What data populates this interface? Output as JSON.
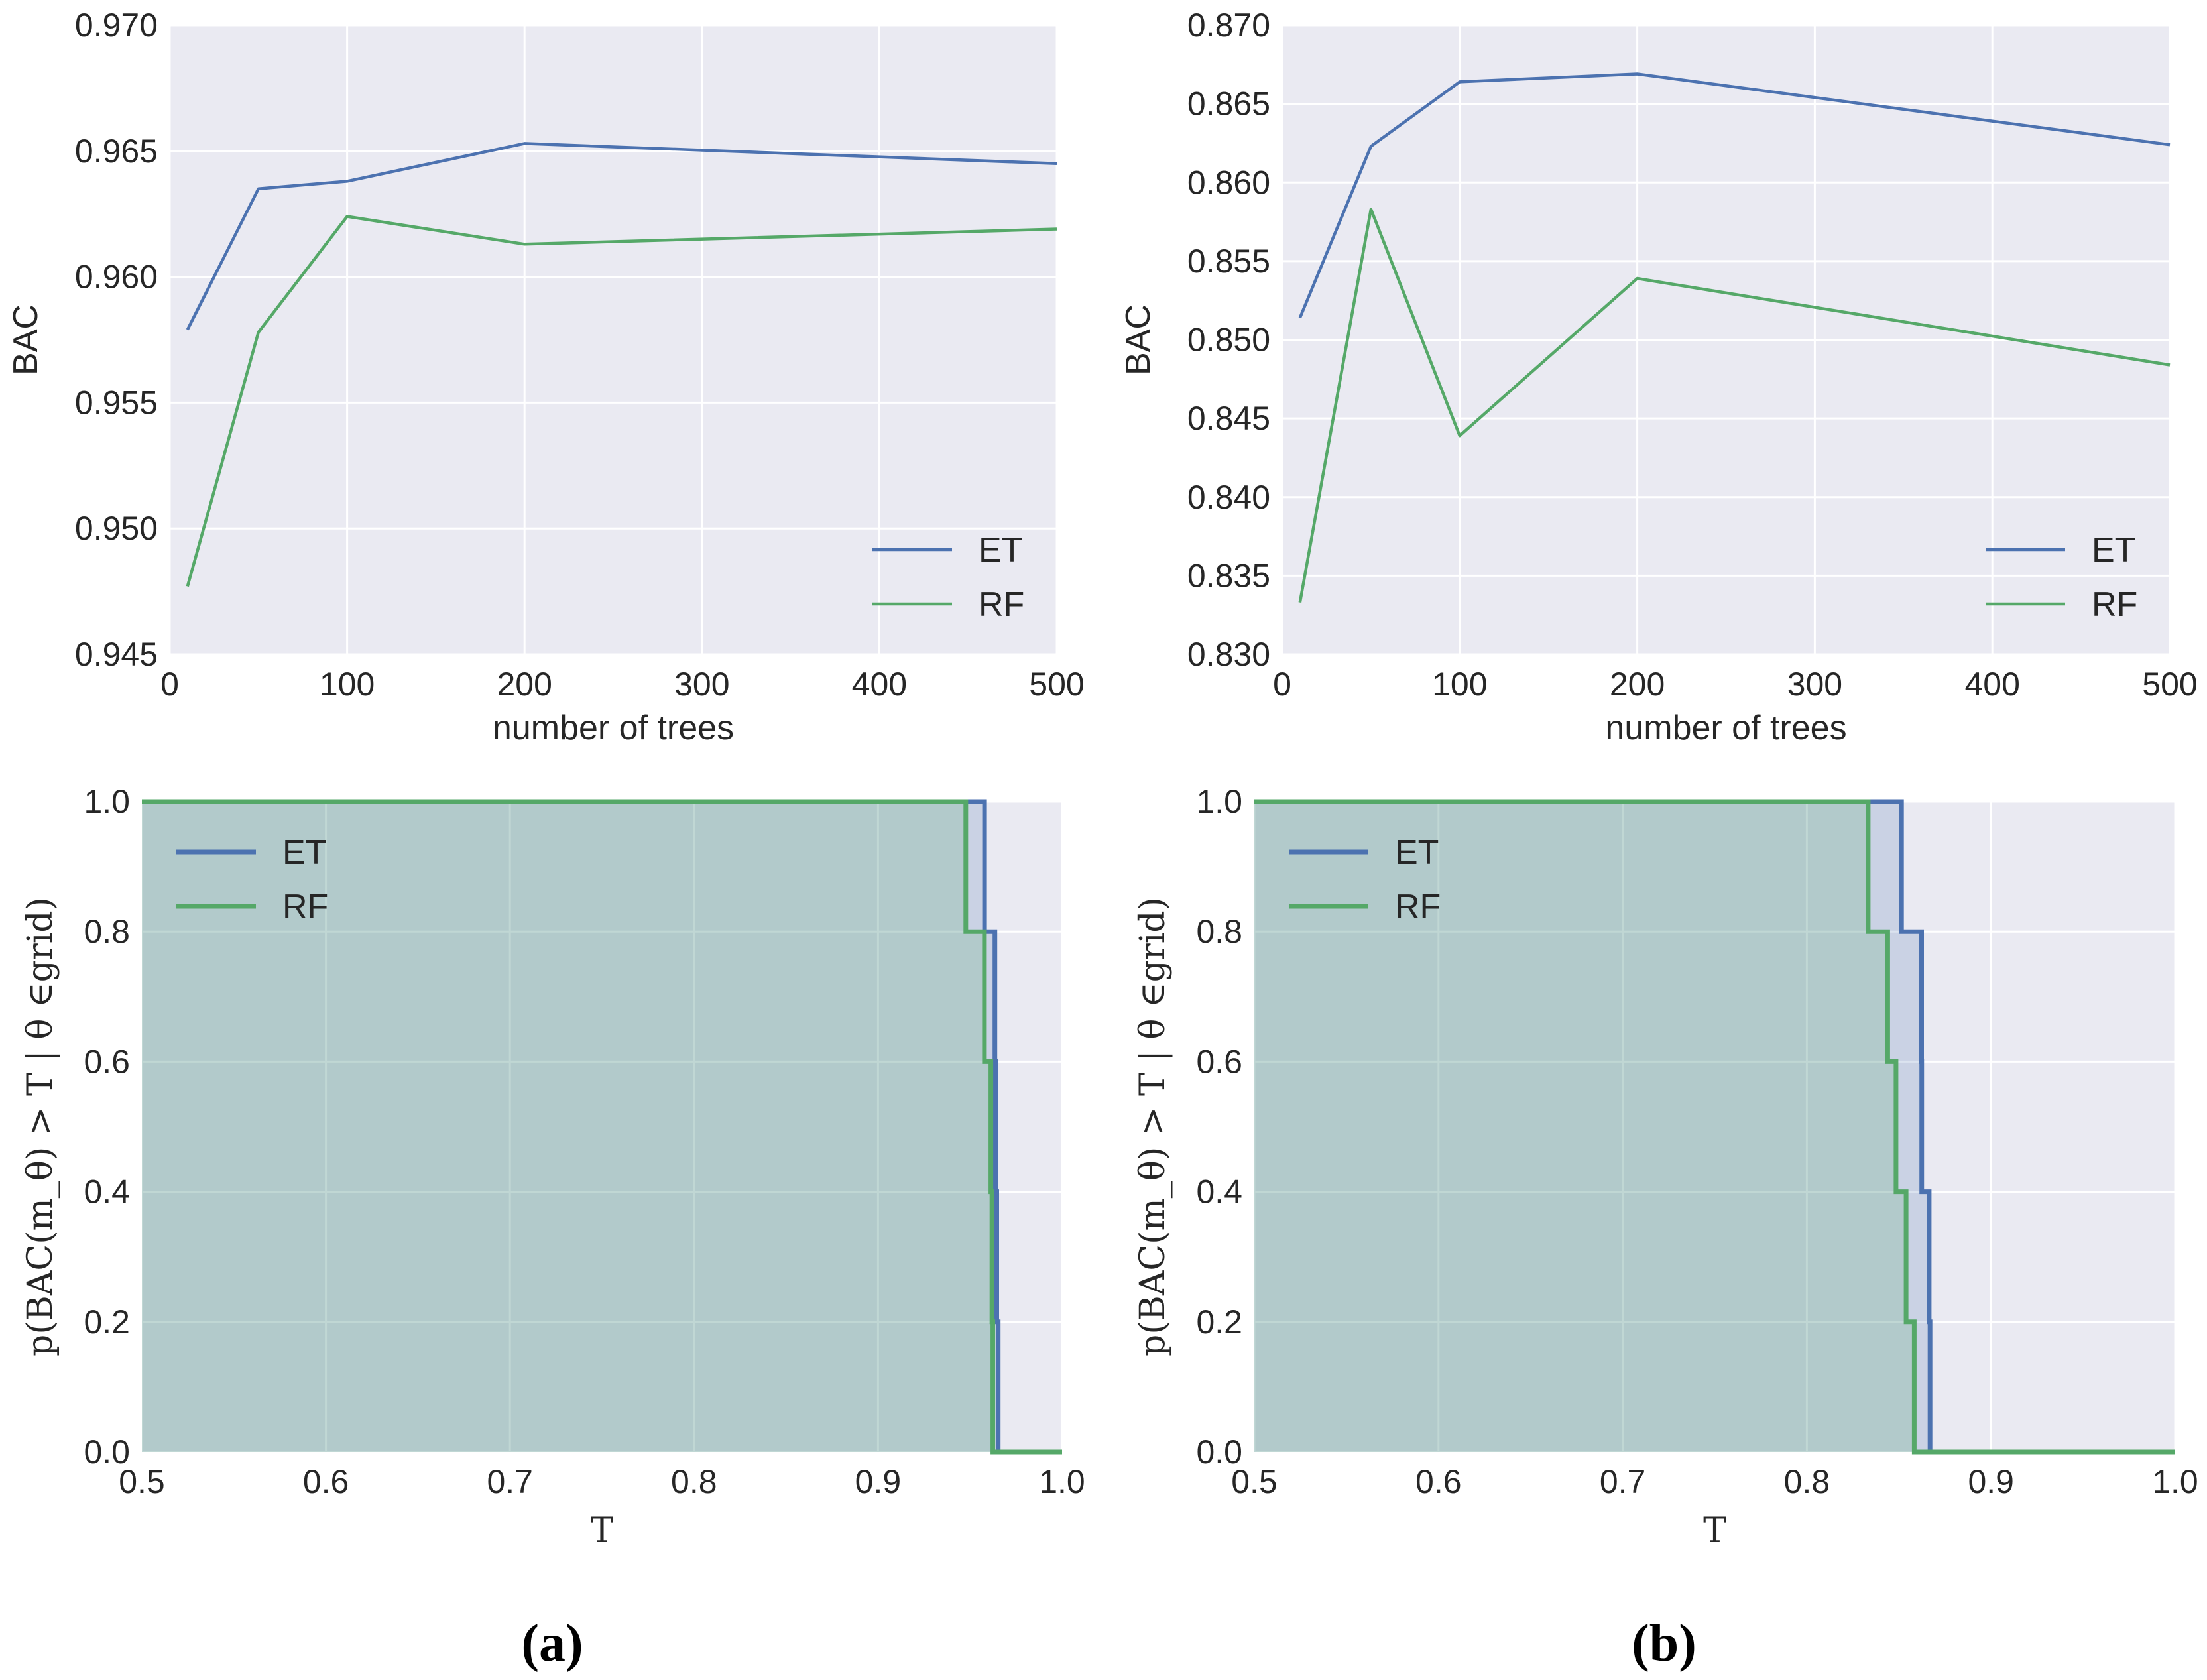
{
  "colors": {
    "et": "#4c72b0",
    "rf": "#55a868",
    "bg": "#eaeaf2",
    "grid": "#ffffff",
    "text": "#262626"
  },
  "chart_data": [
    {
      "id": "a-top",
      "type": "line",
      "xlabel": "number of trees",
      "ylabel": "BAC",
      "xlim": [
        0,
        500
      ],
      "ylim": [
        0.945,
        0.97
      ],
      "xticks": [
        0,
        100,
        200,
        300,
        400,
        500
      ],
      "xtick_labels": [
        "0",
        "100",
        "200",
        "300",
        "400",
        "500"
      ],
      "yticks": [
        0.945,
        0.95,
        0.955,
        0.96,
        0.965,
        0.97
      ],
      "ytick_labels": [
        "0.945",
        "0.950",
        "0.955",
        "0.960",
        "0.965",
        "0.970"
      ],
      "legend_position": "lower-right",
      "x": [
        10,
        50,
        100,
        200,
        500
      ],
      "series": [
        {
          "name": "ET",
          "values": [
            0.9579,
            0.9635,
            0.9638,
            0.9653,
            0.9645
          ]
        },
        {
          "name": "RF",
          "values": [
            0.9477,
            0.9578,
            0.9624,
            0.9613,
            0.9619
          ]
        }
      ]
    },
    {
      "id": "b-top",
      "type": "line",
      "xlabel": "number of trees",
      "ylabel": "BAC",
      "xlim": [
        0,
        500
      ],
      "ylim": [
        0.83,
        0.87
      ],
      "xticks": [
        0,
        100,
        200,
        300,
        400,
        500
      ],
      "xtick_labels": [
        "0",
        "100",
        "200",
        "300",
        "400",
        "500"
      ],
      "yticks": [
        0.83,
        0.835,
        0.84,
        0.845,
        0.85,
        0.855,
        0.86,
        0.865,
        0.87
      ],
      "ytick_labels": [
        "0.830",
        "0.835",
        "0.840",
        "0.845",
        "0.850",
        "0.855",
        "0.860",
        "0.865",
        "0.870"
      ],
      "legend_position": "lower-right",
      "x": [
        10,
        50,
        100,
        200,
        500
      ],
      "series": [
        {
          "name": "ET",
          "values": [
            0.8514,
            0.8623,
            0.8664,
            0.8669,
            0.8624
          ]
        },
        {
          "name": "RF",
          "values": [
            0.8333,
            0.8583,
            0.8439,
            0.8539,
            0.8484
          ]
        }
      ]
    },
    {
      "id": "a-bottom",
      "type": "area",
      "xlabel": "T",
      "ylabel": "p(BAC(m_θ) > T | θ ∈grid)",
      "xlim": [
        0.5,
        1.0
      ],
      "ylim": [
        0.0,
        1.0
      ],
      "xticks": [
        0.5,
        0.6,
        0.7,
        0.8,
        0.9,
        1.0
      ],
      "xtick_labels": [
        "0.5",
        "0.6",
        "0.7",
        "0.8",
        "0.9",
        "1.0"
      ],
      "yticks": [
        0.0,
        0.2,
        0.4,
        0.6,
        0.8,
        1.0
      ],
      "ytick_labels": [
        "0.0",
        "0.2",
        "0.4",
        "0.6",
        "0.8",
        "1.0"
      ],
      "legend_position": "upper-left",
      "series": [
        {
          "name": "ET",
          "thresholds": [
            0.9579,
            0.9635,
            0.9638,
            0.9645,
            0.9653
          ]
        },
        {
          "name": "RF",
          "thresholds": [
            0.9477,
            0.9578,
            0.9613,
            0.9619,
            0.9624
          ]
        }
      ]
    },
    {
      "id": "b-bottom",
      "type": "area",
      "xlabel": "T",
      "ylabel": "p(BAC(m_θ) > T | θ ∈grid)",
      "xlim": [
        0.5,
        1.0
      ],
      "ylim": [
        0.0,
        1.0
      ],
      "xticks": [
        0.5,
        0.6,
        0.7,
        0.8,
        0.9,
        1.0
      ],
      "xtick_labels": [
        "0.5",
        "0.6",
        "0.7",
        "0.8",
        "0.9",
        "1.0"
      ],
      "yticks": [
        0.0,
        0.2,
        0.4,
        0.6,
        0.8,
        1.0
      ],
      "ytick_labels": [
        "0.0",
        "0.2",
        "0.4",
        "0.6",
        "0.8",
        "1.0"
      ],
      "legend_position": "upper-left",
      "series": [
        {
          "name": "ET",
          "thresholds": [
            0.8514,
            0.8623,
            0.8624,
            0.8664,
            0.8669
          ]
        },
        {
          "name": "RF",
          "thresholds": [
            0.8333,
            0.8439,
            0.8484,
            0.8539,
            0.8583
          ]
        }
      ]
    }
  ],
  "panel_labels": [
    "(a)",
    "(b)"
  ]
}
